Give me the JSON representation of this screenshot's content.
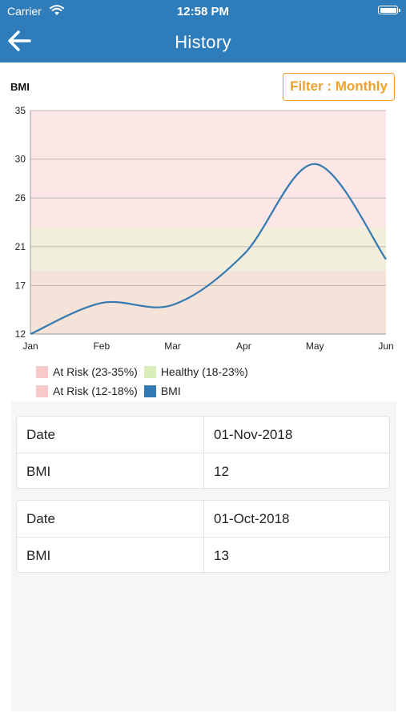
{
  "status_bar": {
    "carrier": "Carrier",
    "time": "12:58 PM"
  },
  "nav": {
    "title": "History"
  },
  "chart_label": "BMI",
  "filter_label": "Filter : Monthly",
  "colors": {
    "header": "#2e7cba",
    "accent_orange": "#f0a02b",
    "line": "#3479b0"
  },
  "chart_data": {
    "type": "line",
    "categories": [
      "Jan",
      "Feb",
      "Mar",
      "Apr",
      "May",
      "Jun"
    ],
    "series": [
      {
        "name": "BMI",
        "color": "#3479b0",
        "values": [
          12,
          15.2,
          15,
          20.2,
          29.5,
          19.7
        ]
      }
    ],
    "bands": [
      {
        "name": "At Risk (23-35%)",
        "from": 23,
        "to": 35,
        "color": "#fde6e6"
      },
      {
        "name": "Healthy (18-23%)",
        "from": 18.5,
        "to": 23,
        "color": "#f1eedc"
      },
      {
        "name": "At Risk (12-18%)",
        "from": 12,
        "to": 18.5,
        "color": "#f5e2d8"
      }
    ],
    "y_ticks": [
      12,
      17,
      21,
      26,
      30,
      35
    ],
    "ylim": [
      12,
      35
    ],
    "grid": true,
    "title": "",
    "xlabel": "",
    "ylabel": ""
  },
  "legend": [
    {
      "label": "At Risk (23-35%)",
      "color": "#f7c9c9"
    },
    {
      "label": "Healthy (18-23%)",
      "color": "#d8efbc"
    },
    {
      "label": "At Risk (12-18%)",
      "color": "#f7c9c9"
    },
    {
      "label": "BMI",
      "color": "#3479b0"
    }
  ],
  "records": [
    {
      "date_label": "Date",
      "date_value": "01-Nov-2018",
      "bmi_label": "BMI",
      "bmi_value": "12"
    },
    {
      "date_label": "Date",
      "date_value": "01-Oct-2018",
      "bmi_label": "BMI",
      "bmi_value": "13"
    }
  ]
}
